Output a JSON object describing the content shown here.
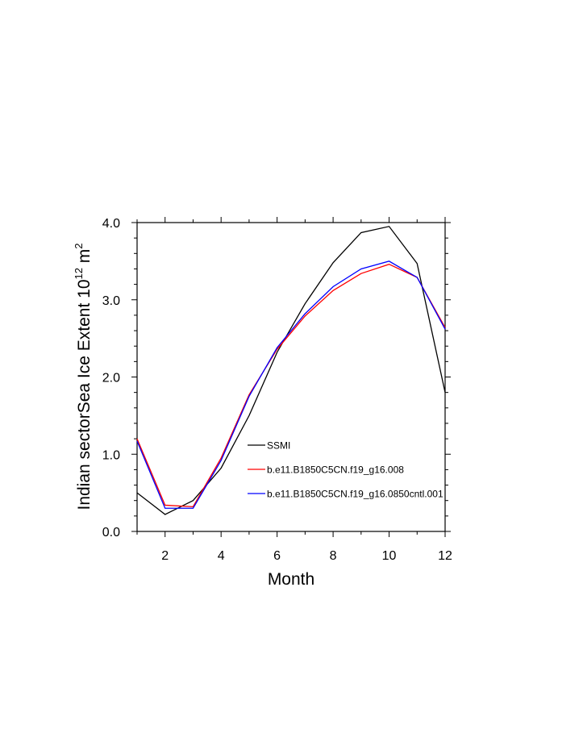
{
  "chart_data": {
    "type": "line",
    "title": "",
    "xlabel": "Month",
    "ylabel": {
      "base": "Indian sectorSea Ice Extent 10",
      "exp1": "12",
      "unit": " m",
      "exp2": "2"
    },
    "xlim": [
      1,
      12
    ],
    "ylim": [
      0,
      4
    ],
    "xticks": [
      2,
      4,
      6,
      8,
      10,
      12
    ],
    "yticks": [
      0,
      1,
      2,
      3,
      4
    ],
    "ytick_labels": [
      "0.0",
      "1.0",
      "2.0",
      "3.0",
      "4.0"
    ],
    "grid": false,
    "legend_position": "lower-right inside",
    "x": [
      1,
      2,
      3,
      4,
      5,
      6,
      7,
      8,
      9,
      10,
      11,
      12
    ],
    "series": [
      {
        "name": "SSMI",
        "color": "#000000",
        "values": [
          0.5,
          0.22,
          0.4,
          0.82,
          1.5,
          2.32,
          2.95,
          3.48,
          3.87,
          3.95,
          3.47,
          1.8
        ]
      },
      {
        "name": "b.e11.B1850C5CN.f19_g16.008",
        "color": "#ff0000",
        "values": [
          1.2,
          0.34,
          0.32,
          0.95,
          1.77,
          2.36,
          2.79,
          3.12,
          3.34,
          3.46,
          3.29,
          2.64
        ]
      },
      {
        "name": "b.e11.B1850C5CN.f19_g16.0850cntl.001",
        "color": "#0000ff",
        "values": [
          1.17,
          0.3,
          0.3,
          0.92,
          1.75,
          2.38,
          2.82,
          3.17,
          3.4,
          3.5,
          3.29,
          2.62
        ]
      }
    ]
  }
}
